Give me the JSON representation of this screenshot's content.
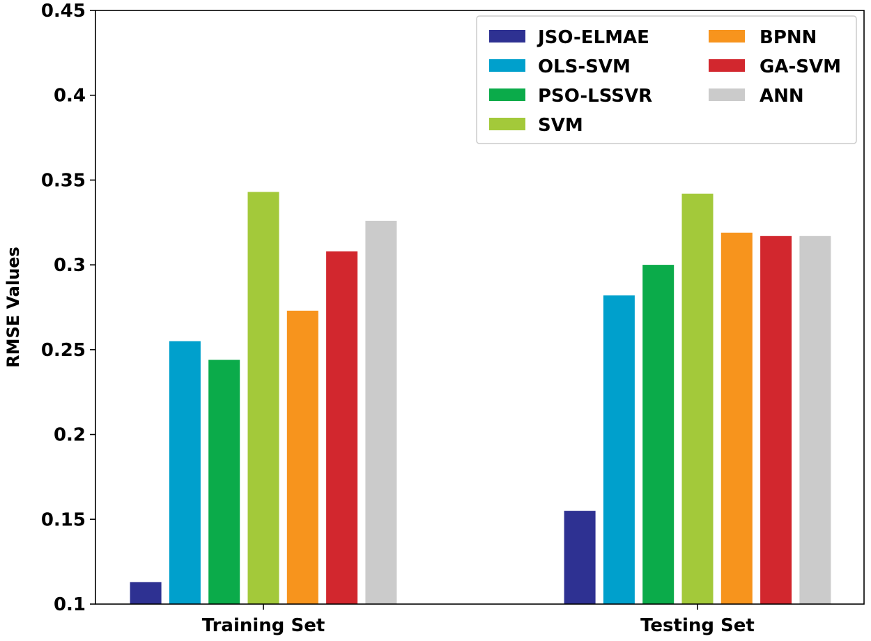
{
  "chart_data": {
    "type": "bar",
    "title": "",
    "xlabel": "",
    "ylabel": "RMSE Values",
    "ylim": [
      0.1,
      0.45
    ],
    "yticks": [
      "0.1",
      "0.15",
      "0.2",
      "0.25",
      "0.3",
      "0.35",
      "0.4",
      "0.45"
    ],
    "categories": [
      "Training Set",
      "Testing Set"
    ],
    "grid": false,
    "legend_position": "top-right",
    "series": [
      {
        "name": "JSO-ELMAE",
        "color": "#2e3192",
        "values": [
          0.113,
          0.155
        ]
      },
      {
        "name": "OLS-SVM",
        "color": "#00a0cc",
        "values": [
          0.255,
          0.282
        ]
      },
      {
        "name": "PSO-LSSVR",
        "color": "#0bab4a",
        "values": [
          0.244,
          0.3
        ]
      },
      {
        "name": "SVM",
        "color": "#a3c93a",
        "values": [
          0.343,
          0.342
        ]
      },
      {
        "name": "BPNN",
        "color": "#f7941d",
        "values": [
          0.273,
          0.319
        ]
      },
      {
        "name": "GA-SVM",
        "color": "#d2272e",
        "values": [
          0.308,
          0.317
        ]
      },
      {
        "name": "ANN",
        "color": "#cbcbcb",
        "values": [
          0.326,
          0.317
        ]
      }
    ]
  }
}
